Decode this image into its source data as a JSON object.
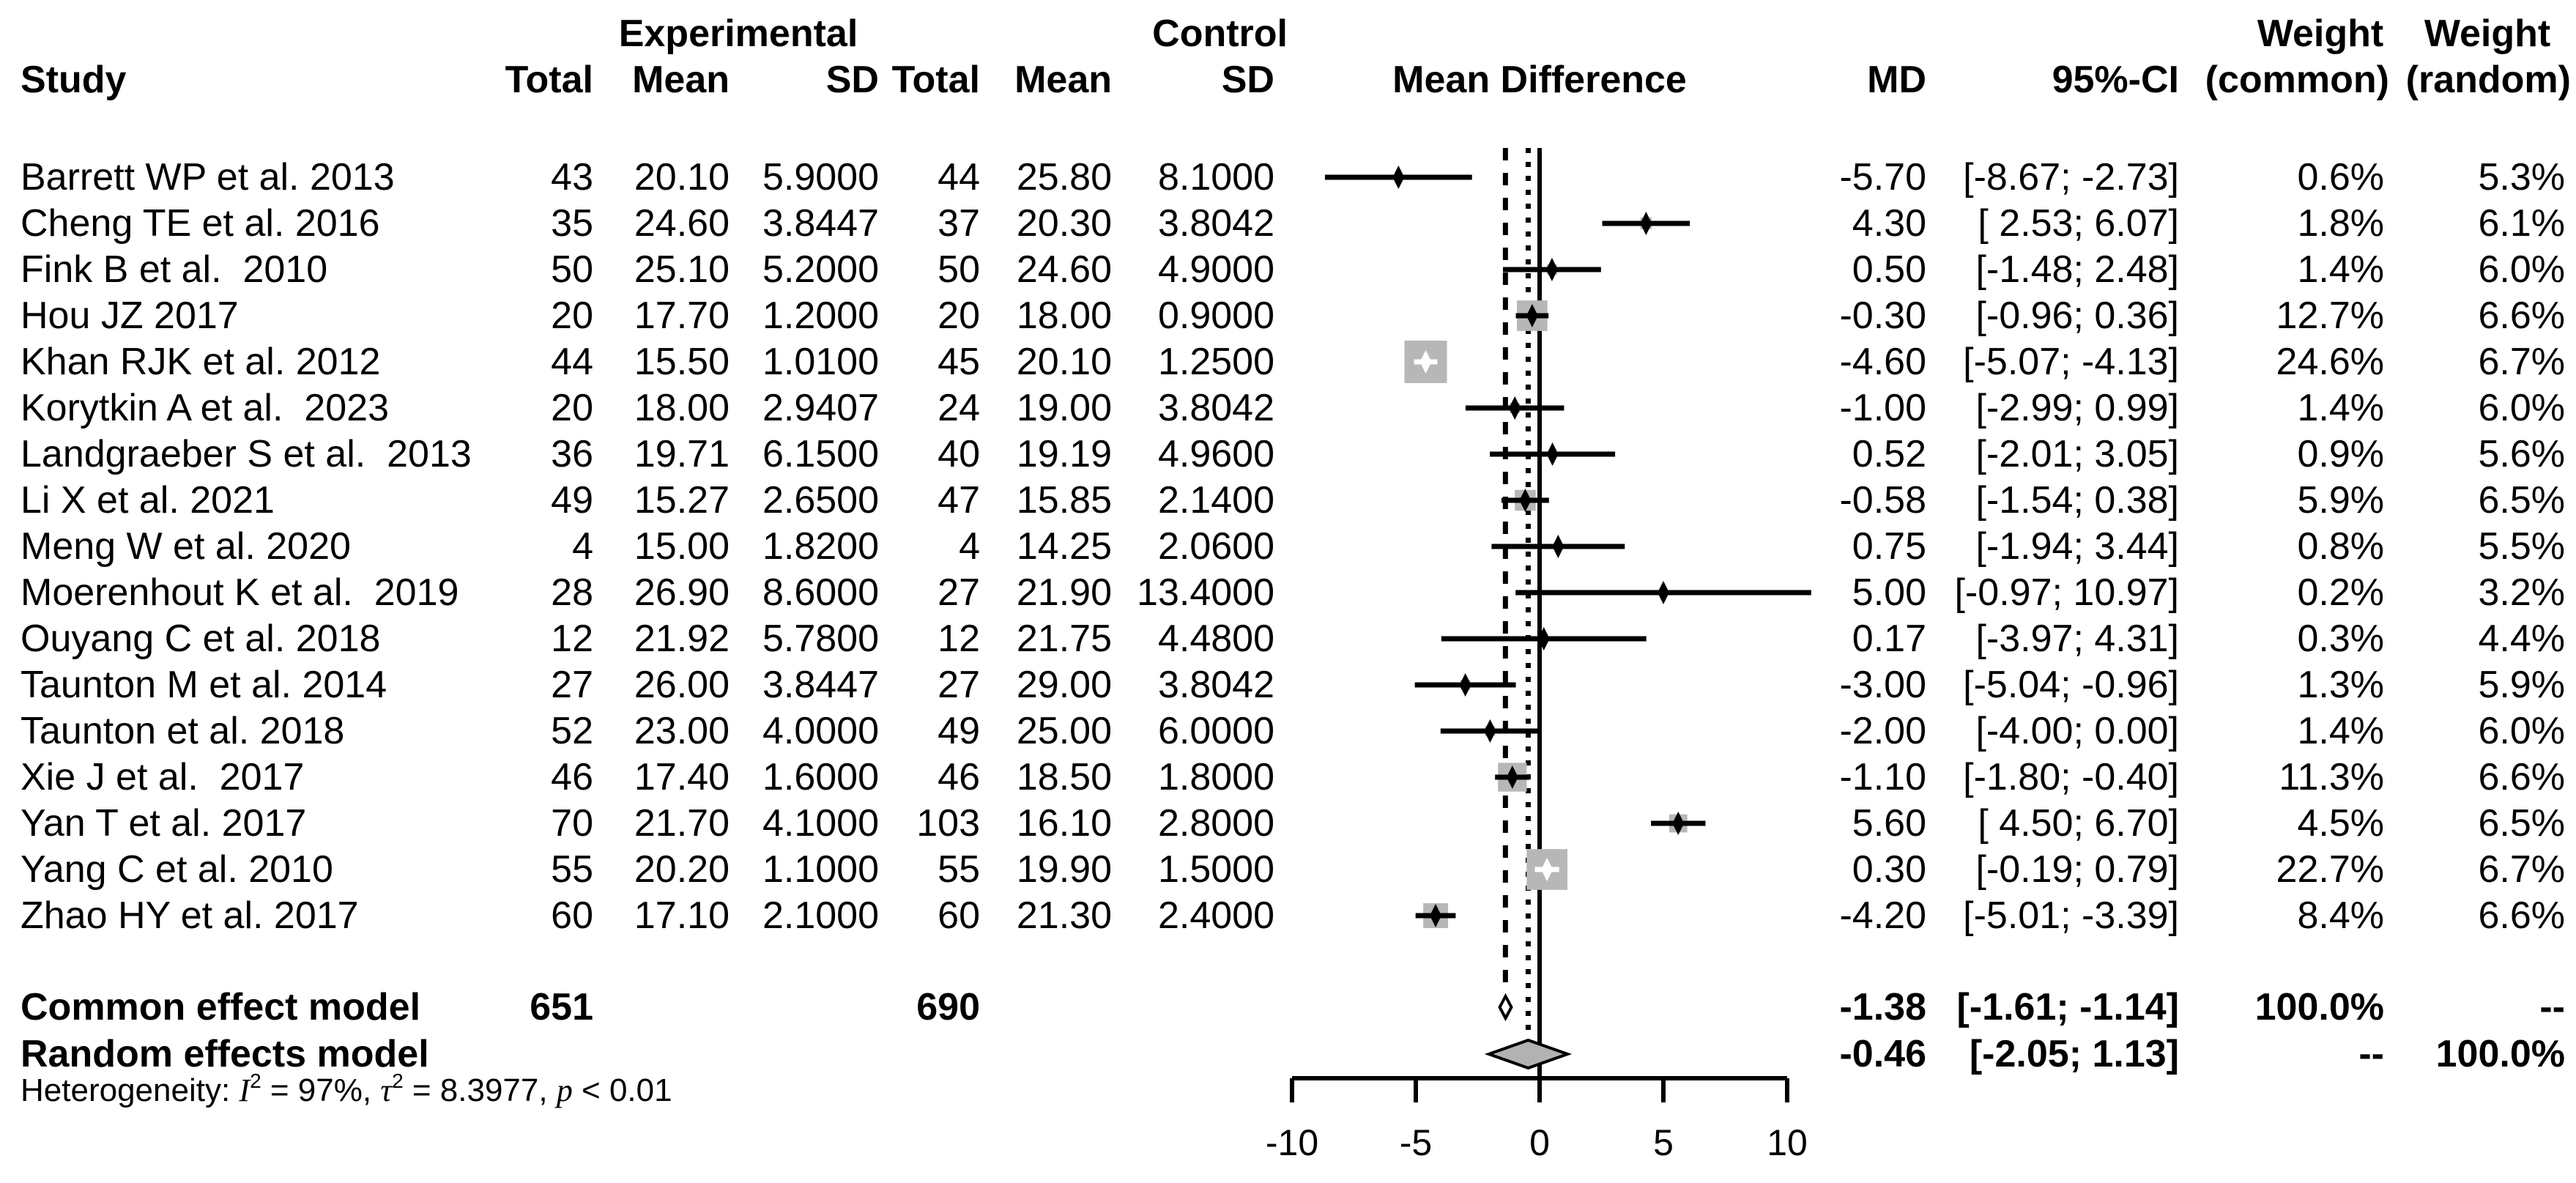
{
  "header": {
    "study": "Study",
    "group_experimental": "Experimental",
    "group_control": "Control",
    "total": "Total",
    "mean": "Mean",
    "sd": "SD",
    "plot_title": "Mean Difference",
    "md": "MD",
    "ci": "95%-CI",
    "weight": "Weight",
    "weight_common_sub": "(common)",
    "weight_random_sub": "(random)"
  },
  "summary": {
    "common": {
      "label": "Common effect model",
      "total_experimental": "651",
      "total_control": "690",
      "md": -1.38,
      "ci_low": -1.61,
      "ci_high": -1.14,
      "md_label": "-1.38",
      "ci_label": "[-1.61; -1.14]",
      "weight_common": "100.0%",
      "weight_random": "--"
    },
    "random": {
      "label": "Random effects model",
      "md": -0.46,
      "ci_low": -2.05,
      "ci_high": 1.13,
      "md_label": "-0.46",
      "ci_label": "[-2.05; 1.13]",
      "weight_common": "--",
      "weight_random": "100.0%"
    }
  },
  "heterogeneity": {
    "prefix": "Heterogeneity: ",
    "i_symbol": "I",
    "i_sup": "2",
    "segment_1": " = 97%, ",
    "tau_symbol": "τ",
    "tau_sup": "2",
    "segment_2": " = 8.3977, ",
    "p_symbol": "p",
    "segment_3": " < 0.01"
  },
  "colors": {
    "square": "#b7b7b7",
    "diamond_random": "#b2b2b2",
    "diamond_common": "#ffffff",
    "line": "#000000"
  },
  "chart_data": {
    "type": "forest",
    "title": "Mean Difference",
    "x_axis": {
      "ticks": [
        -10,
        -5,
        0,
        5,
        10
      ],
      "tick_labels": [
        "-10",
        "-5",
        "0",
        "5",
        "10"
      ],
      "xlim": [
        -10,
        10
      ]
    },
    "reference_line": 0,
    "max_weight_common": 24.6,
    "studies": [
      {
        "name": "Barrett WP et al. 2013",
        "n1": "43",
        "mean1": "20.10",
        "sd1": "5.9000",
        "n2": "44",
        "mean2": "25.80",
        "sd2": "8.1000",
        "md": -5.7,
        "md_label": "-5.70",
        "ci_low": -8.67,
        "ci_high": -2.73,
        "ci_label": "[-8.67; -2.73]",
        "w_common": "0.6%",
        "w_random": "5.3%"
      },
      {
        "name": "Cheng TE et al. 2016",
        "n1": "35",
        "mean1": "24.60",
        "sd1": "3.8447",
        "n2": "37",
        "mean2": "20.30",
        "sd2": "3.8042",
        "md": 4.3,
        "md_label": "4.30",
        "ci_low": 2.53,
        "ci_high": 6.07,
        "ci_label": "[ 2.53; 6.07]",
        "w_common": "1.8%",
        "w_random": "6.1%"
      },
      {
        "name": "Fink B et al.  2010",
        "n1": "50",
        "mean1": "25.10",
        "sd1": "5.2000",
        "n2": "50",
        "mean2": "24.60",
        "sd2": "4.9000",
        "md": 0.5,
        "md_label": "0.50",
        "ci_low": -1.48,
        "ci_high": 2.48,
        "ci_label": "[-1.48; 2.48]",
        "w_common": "1.4%",
        "w_random": "6.0%"
      },
      {
        "name": "Hou JZ 2017",
        "n1": "20",
        "mean1": "17.70",
        "sd1": "1.2000",
        "n2": "20",
        "mean2": "18.00",
        "sd2": "0.9000",
        "md": -0.3,
        "md_label": "-0.30",
        "ci_low": -0.96,
        "ci_high": 0.36,
        "ci_label": "[-0.96; 0.36]",
        "w_common": "12.7%",
        "w_random": "6.6%"
      },
      {
        "name": "Khan RJK et al. 2012",
        "n1": "44",
        "mean1": "15.50",
        "sd1": "1.0100",
        "n2": "45",
        "mean2": "20.10",
        "sd2": "1.2500",
        "md": -4.6,
        "md_label": "-4.60",
        "ci_low": -5.07,
        "ci_high": -4.13,
        "ci_label": "[-5.07; -4.13]",
        "w_common": "24.6%",
        "w_random": "6.7%"
      },
      {
        "name": "Korytkin A et al.  2023",
        "n1": "20",
        "mean1": "18.00",
        "sd1": "2.9407",
        "n2": "24",
        "mean2": "19.00",
        "sd2": "3.8042",
        "md": -1.0,
        "md_label": "-1.00",
        "ci_low": -2.99,
        "ci_high": 0.99,
        "ci_label": "[-2.99; 0.99]",
        "w_common": "1.4%",
        "w_random": "6.0%"
      },
      {
        "name": "Landgraeber S et al.  2013",
        "n1": "36",
        "mean1": "19.71",
        "sd1": "6.1500",
        "n2": "40",
        "mean2": "19.19",
        "sd2": "4.9600",
        "md": 0.52,
        "md_label": "0.52",
        "ci_low": -2.01,
        "ci_high": 3.05,
        "ci_label": "[-2.01; 3.05]",
        "w_common": "0.9%",
        "w_random": "5.6%"
      },
      {
        "name": "Li X et al. 2021",
        "n1": "49",
        "mean1": "15.27",
        "sd1": "2.6500",
        "n2": "47",
        "mean2": "15.85",
        "sd2": "2.1400",
        "md": -0.58,
        "md_label": "-0.58",
        "ci_low": -1.54,
        "ci_high": 0.38,
        "ci_label": "[-1.54; 0.38]",
        "w_common": "5.9%",
        "w_random": "6.5%"
      },
      {
        "name": "Meng W et al. 2020",
        "n1": "4",
        "mean1": "15.00",
        "sd1": "1.8200",
        "n2": "4",
        "mean2": "14.25",
        "sd2": "2.0600",
        "md": 0.75,
        "md_label": "0.75",
        "ci_low": -1.94,
        "ci_high": 3.44,
        "ci_label": "[-1.94; 3.44]",
        "w_common": "0.8%",
        "w_random": "5.5%"
      },
      {
        "name": "Moerenhout K et al.  2019",
        "n1": "28",
        "mean1": "26.90",
        "sd1": "8.6000",
        "n2": "27",
        "mean2": "21.90",
        "sd2": "13.4000",
        "md": 5.0,
        "md_label": "5.00",
        "ci_low": -0.97,
        "ci_high": 10.97,
        "ci_label": "[-0.97; 10.97]",
        "w_common": "0.2%",
        "w_random": "3.2%"
      },
      {
        "name": "Ouyang C et al. 2018",
        "n1": "12",
        "mean1": "21.92",
        "sd1": "5.7800",
        "n2": "12",
        "mean2": "21.75",
        "sd2": "4.4800",
        "md": 0.17,
        "md_label": "0.17",
        "ci_low": -3.97,
        "ci_high": 4.31,
        "ci_label": "[-3.97; 4.31]",
        "w_common": "0.3%",
        "w_random": "4.4%"
      },
      {
        "name": "Taunton M et al. 2014",
        "n1": "27",
        "mean1": "26.00",
        "sd1": "3.8447",
        "n2": "27",
        "mean2": "29.00",
        "sd2": "3.8042",
        "md": -3.0,
        "md_label": "-3.00",
        "ci_low": -5.04,
        "ci_high": -0.96,
        "ci_label": "[-5.04; -0.96]",
        "w_common": "1.3%",
        "w_random": "5.9%"
      },
      {
        "name": "Taunton et al. 2018",
        "n1": "52",
        "mean1": "23.00",
        "sd1": "4.0000",
        "n2": "49",
        "mean2": "25.00",
        "sd2": "6.0000",
        "md": -2.0,
        "md_label": "-2.00",
        "ci_low": -4.0,
        "ci_high": 0.0,
        "ci_label": "[-4.00; 0.00]",
        "w_common": "1.4%",
        "w_random": "6.0%"
      },
      {
        "name": "Xie J et al.  2017",
        "n1": "46",
        "mean1": "17.40",
        "sd1": "1.6000",
        "n2": "46",
        "mean2": "18.50",
        "sd2": "1.8000",
        "md": -1.1,
        "md_label": "-1.10",
        "ci_low": -1.8,
        "ci_high": -0.4,
        "ci_label": "[-1.80; -0.40]",
        "w_common": "11.3%",
        "w_random": "6.6%"
      },
      {
        "name": "Yan T et al. 2017",
        "n1": "70",
        "mean1": "21.70",
        "sd1": "4.1000",
        "n2": "103",
        "mean2": "16.10",
        "sd2": "2.8000",
        "md": 5.6,
        "md_label": "5.60",
        "ci_low": 4.5,
        "ci_high": 6.7,
        "ci_label": "[ 4.50; 6.70]",
        "w_common": "4.5%",
        "w_random": "6.5%"
      },
      {
        "name": "Yang C et al. 2010",
        "n1": "55",
        "mean1": "20.20",
        "sd1": "1.1000",
        "n2": "55",
        "mean2": "19.90",
        "sd2": "1.5000",
        "md": 0.3,
        "md_label": "0.30",
        "ci_low": -0.19,
        "ci_high": 0.79,
        "ci_label": "[-0.19; 0.79]",
        "w_common": "22.7%",
        "w_random": "6.7%"
      },
      {
        "name": "Zhao HY et al. 2017",
        "n1": "60",
        "mean1": "17.10",
        "sd1": "2.1000",
        "n2": "60",
        "mean2": "21.30",
        "sd2": "2.4000",
        "md": -4.2,
        "md_label": "-4.20",
        "ci_low": -5.01,
        "ci_high": -3.39,
        "ci_label": "[-5.01; -3.39]",
        "w_common": "8.4%",
        "w_random": "6.6%"
      }
    ],
    "common_effect": {
      "md": -1.38,
      "ci_low": -1.61,
      "ci_high": -1.14
    },
    "random_effect": {
      "md": -0.46,
      "ci_low": -2.05,
      "ci_high": 1.13
    }
  }
}
